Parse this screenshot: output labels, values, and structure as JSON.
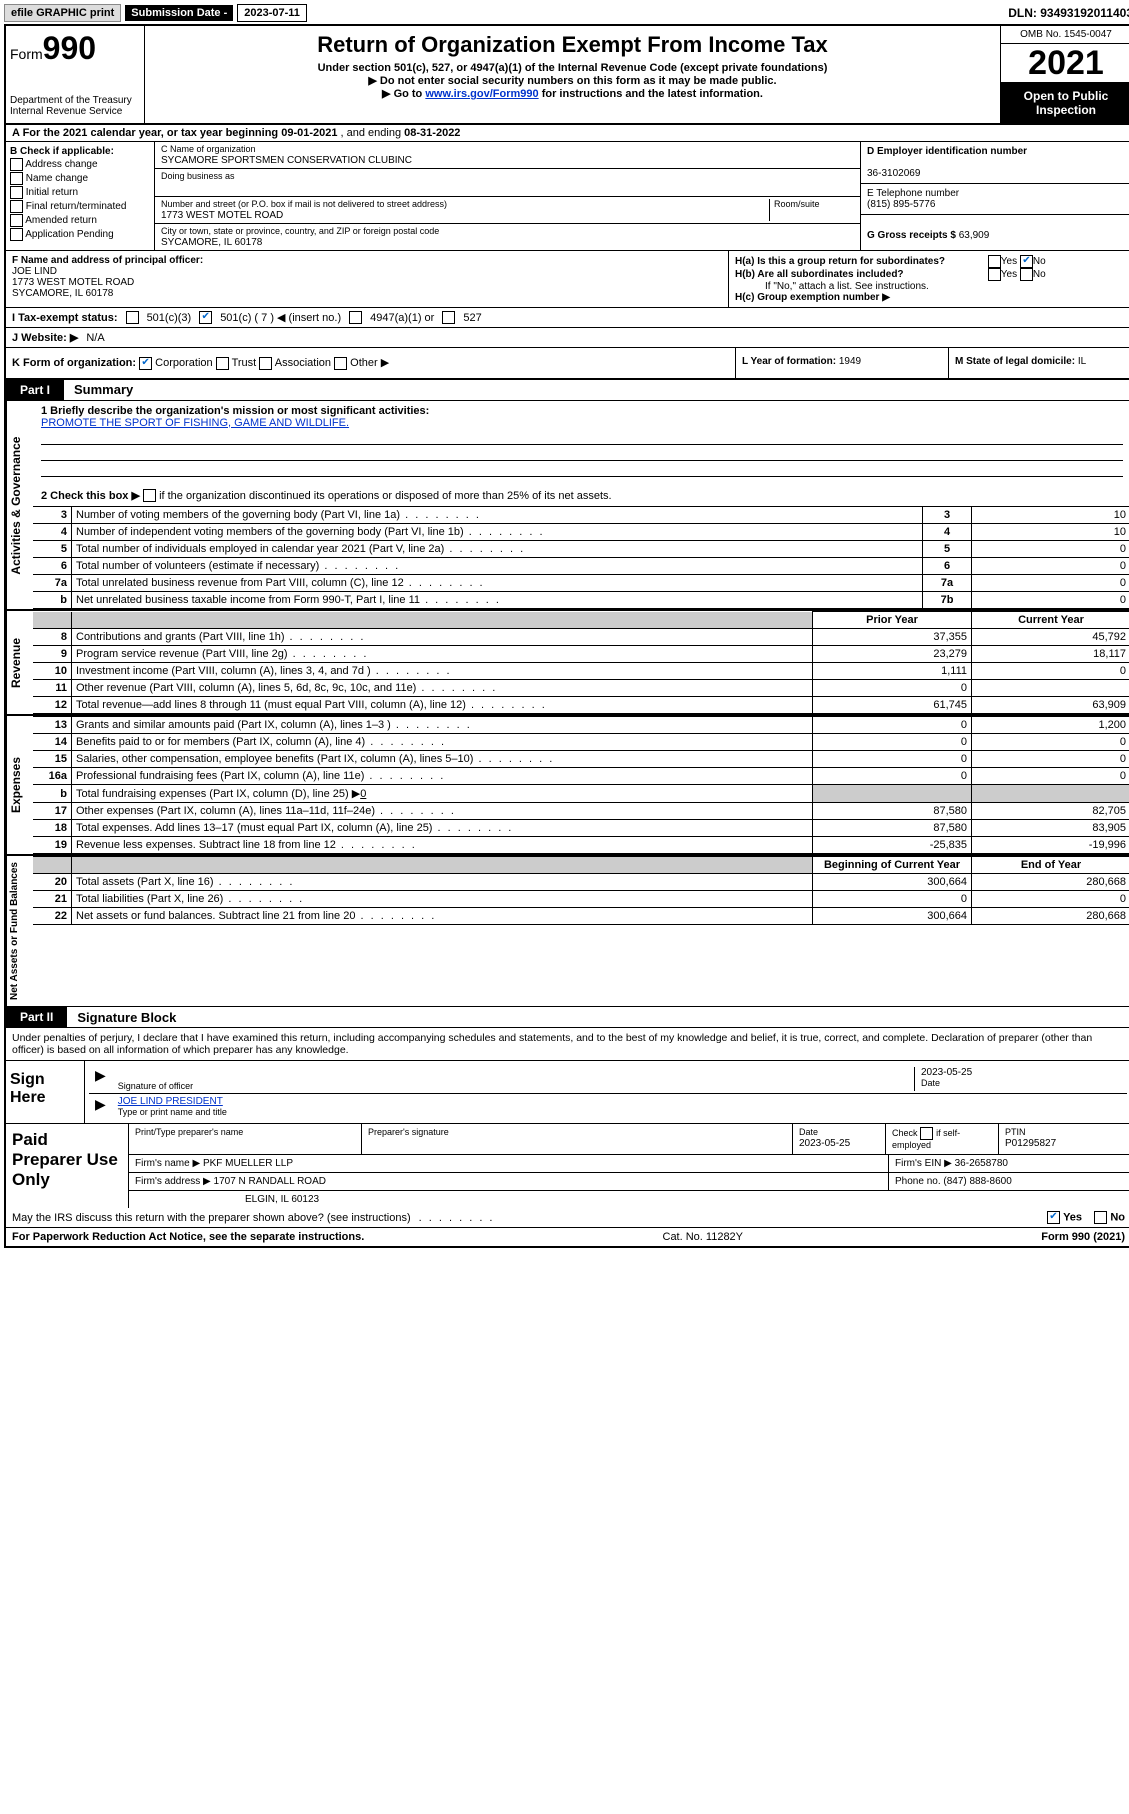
{
  "topbar": {
    "efile": "efile GRAPHIC print",
    "submission_label": "Submission Date - ",
    "submission_date": "2023-07-11",
    "dln_label": "DLN: ",
    "dln": "93493192011403"
  },
  "header": {
    "form_prefix": "Form",
    "form_number": "990",
    "dept": "Department of the Treasury\nInternal Revenue Service",
    "title": "Return of Organization Exempt From Income Tax",
    "subtitle": "Under section 501(c), 527, or 4947(a)(1) of the Internal Revenue Code (except private foundations)",
    "note1": "▶ Do not enter social security numbers on this form as it may be made public.",
    "note2_pre": "▶ Go to ",
    "note2_link": "www.irs.gov/Form990",
    "note2_post": " for instructions and the latest information.",
    "omb": "OMB No. 1545-0047",
    "year": "2021",
    "open": "Open to Public Inspection"
  },
  "row_a": {
    "label": "A For the 2021 calendar year, or tax year beginning ",
    "begin": "09-01-2021",
    "mid": " , and ending ",
    "end": "08-31-2022"
  },
  "section_b": {
    "label": "B Check if applicable:",
    "opts": [
      "Address change",
      "Name change",
      "Initial return",
      "Final return/terminated",
      "Amended return",
      "Application Pending"
    ]
  },
  "section_c": {
    "name_label": "C Name of organization",
    "name": "SYCAMORE SPORTSMEN CONSERVATION CLUBINC",
    "dba_label": "Doing business as",
    "addr_label": "Number and street (or P.O. box if mail is not delivered to street address)",
    "room_label": "Room/suite",
    "addr": "1773 WEST MOTEL ROAD",
    "city_label": "City or town, state or province, country, and ZIP or foreign postal code",
    "city": "SYCAMORE, IL  60178"
  },
  "section_de": {
    "d_label": "D Employer identification number",
    "d_val": "36-3102069",
    "e_label": "E Telephone number",
    "e_val": "(815) 895-5776",
    "g_label": "G Gross receipts $ ",
    "g_val": "63,909"
  },
  "section_f": {
    "label": "F Name and address of principal officer:",
    "name": "JOE LIND",
    "addr1": "1773 WEST MOTEL ROAD",
    "addr2": "SYCAMORE, IL  60178"
  },
  "section_h": {
    "ha": "H(a)  Is this a group return for subordinates?",
    "hb": "H(b)  Are all subordinates included?",
    "hb_note": "If \"No,\" attach a list. See instructions.",
    "hc": "H(c)  Group exemption number ▶",
    "yes": "Yes",
    "no": "No"
  },
  "row_i": {
    "label": "I   Tax-exempt status:",
    "o1": "501(c)(3)",
    "o2": "501(c) ( 7 ) ◀ (insert no.)",
    "o3": "4947(a)(1) or",
    "o4": "527"
  },
  "row_j": {
    "label": "J   Website: ▶",
    "val": "N/A"
  },
  "row_k": {
    "label": "K Form of organization:",
    "o1": "Corporation",
    "o2": "Trust",
    "o3": "Association",
    "o4": "Other ▶"
  },
  "row_l": {
    "label": "L Year of formation: ",
    "val": "1949"
  },
  "row_m": {
    "label": "M State of legal domicile: ",
    "val": "IL"
  },
  "parts": {
    "p1": "Part I",
    "p1_title": "Summary",
    "p2": "Part II",
    "p2_title": "Signature Block"
  },
  "mission": {
    "q1": "1  Briefly describe the organization's mission or most significant activities:",
    "text": "PROMOTE THE SPORT OF FISHING, GAME AND WILDLIFE.",
    "q2_pre": "2   Check this box ▶",
    "q2_post": "  if the organization discontinued its operations or disposed of more than 25% of its net assets."
  },
  "side_labels": {
    "ag": "Activities & Governance",
    "rev": "Revenue",
    "exp": "Expenses",
    "net": "Net Assets or Fund Balances"
  },
  "governance_rows": [
    {
      "n": "3",
      "d": "Number of voting members of the governing body (Part VI, line 1a)",
      "c": "3",
      "v": "10"
    },
    {
      "n": "4",
      "d": "Number of independent voting members of the governing body (Part VI, line 1b)",
      "c": "4",
      "v": "10"
    },
    {
      "n": "5",
      "d": "Total number of individuals employed in calendar year 2021 (Part V, line 2a)",
      "c": "5",
      "v": "0"
    },
    {
      "n": "6",
      "d": "Total number of volunteers (estimate if necessary)",
      "c": "6",
      "v": "0"
    },
    {
      "n": "7a",
      "d": "Total unrelated business revenue from Part VIII, column (C), line 12",
      "c": "7a",
      "v": "0"
    },
    {
      "n": "b",
      "d": "Net unrelated business taxable income from Form 990-T, Part I, line 11",
      "c": "7b",
      "v": "0"
    }
  ],
  "two_col_header": {
    "prior": "Prior Year",
    "current": "Current Year"
  },
  "revenue_rows": [
    {
      "n": "8",
      "d": "Contributions and grants (Part VIII, line 1h)",
      "p": "37,355",
      "c": "45,792"
    },
    {
      "n": "9",
      "d": "Program service revenue (Part VIII, line 2g)",
      "p": "23,279",
      "c": "18,117"
    },
    {
      "n": "10",
      "d": "Investment income (Part VIII, column (A), lines 3, 4, and 7d )",
      "p": "1,111",
      "c": "0"
    },
    {
      "n": "11",
      "d": "Other revenue (Part VIII, column (A), lines 5, 6d, 8c, 9c, 10c, and 11e)",
      "p": "0",
      "c": ""
    },
    {
      "n": "12",
      "d": "Total revenue—add lines 8 through 11 (must equal Part VIII, column (A), line 12)",
      "p": "61,745",
      "c": "63,909"
    }
  ],
  "expense_rows": [
    {
      "n": "13",
      "d": "Grants and similar amounts paid (Part IX, column (A), lines 1–3 )",
      "p": "0",
      "c": "1,200"
    },
    {
      "n": "14",
      "d": "Benefits paid to or for members (Part IX, column (A), line 4)",
      "p": "0",
      "c": "0"
    },
    {
      "n": "15",
      "d": "Salaries, other compensation, employee benefits (Part IX, column (A), lines 5–10)",
      "p": "0",
      "c": "0"
    },
    {
      "n": "16a",
      "d": "Professional fundraising fees (Part IX, column (A), line 11e)",
      "p": "0",
      "c": "0"
    }
  ],
  "expense_b": {
    "n": "b",
    "d": "Total fundraising expenses (Part IX, column (D), line 25) ▶",
    "v": "0"
  },
  "expense_rows2": [
    {
      "n": "17",
      "d": "Other expenses (Part IX, column (A), lines 11a–11d, 11f–24e)",
      "p": "87,580",
      "c": "82,705"
    },
    {
      "n": "18",
      "d": "Total expenses. Add lines 13–17 (must equal Part IX, column (A), line 25)",
      "p": "87,580",
      "c": "83,905"
    },
    {
      "n": "19",
      "d": "Revenue less expenses. Subtract line 18 from line 12",
      "p": "-25,835",
      "c": "-19,996"
    }
  ],
  "net_header": {
    "begin": "Beginning of Current Year",
    "end": "End of Year"
  },
  "net_rows": [
    {
      "n": "20",
      "d": "Total assets (Part X, line 16)",
      "p": "300,664",
      "c": "280,668"
    },
    {
      "n": "21",
      "d": "Total liabilities (Part X, line 26)",
      "p": "0",
      "c": "0"
    },
    {
      "n": "22",
      "d": "Net assets or fund balances. Subtract line 21 from line 20",
      "p": "300,664",
      "c": "280,668"
    }
  ],
  "sig_declaration": "Under penalties of perjury, I declare that I have examined this return, including accompanying schedules and statements, and to the best of my knowledge and belief, it is true, correct, and complete. Declaration of preparer (other than officer) is based on all information of which preparer has any knowledge.",
  "sign": {
    "label": "Sign Here",
    "sig_label": "Signature of officer",
    "date": "2023-05-25",
    "date_label": "Date",
    "name": "JOE LIND PRESIDENT",
    "name_label": "Type or print name and title"
  },
  "preparer": {
    "label": "Paid Preparer Use Only",
    "h1": "Print/Type preparer's name",
    "h2": "Preparer's signature",
    "h3": "Date",
    "h3v": "2023-05-25",
    "h4": "Check",
    "h4b": "if self-employed",
    "h5": "PTIN",
    "h5v": "P01295827",
    "firm_label": "Firm's name    ▶",
    "firm": "PKF MUELLER LLP",
    "ein_label": "Firm's EIN ▶",
    "ein": "36-2658780",
    "addr_label": "Firm's address ▶",
    "addr1": "1707 N RANDALL ROAD",
    "addr2": "ELGIN, IL  60123",
    "phone_label": "Phone no. ",
    "phone": "(847) 888-8600"
  },
  "discuss": {
    "q": "May the IRS discuss this return with the preparer shown above? (see instructions)",
    "yes": "Yes",
    "no": "No"
  },
  "footer": {
    "left": "For Paperwork Reduction Act Notice, see the separate instructions.",
    "mid": "Cat. No. 11282Y",
    "right_pre": "Form ",
    "right_b": "990",
    "right_post": " (2021)"
  }
}
